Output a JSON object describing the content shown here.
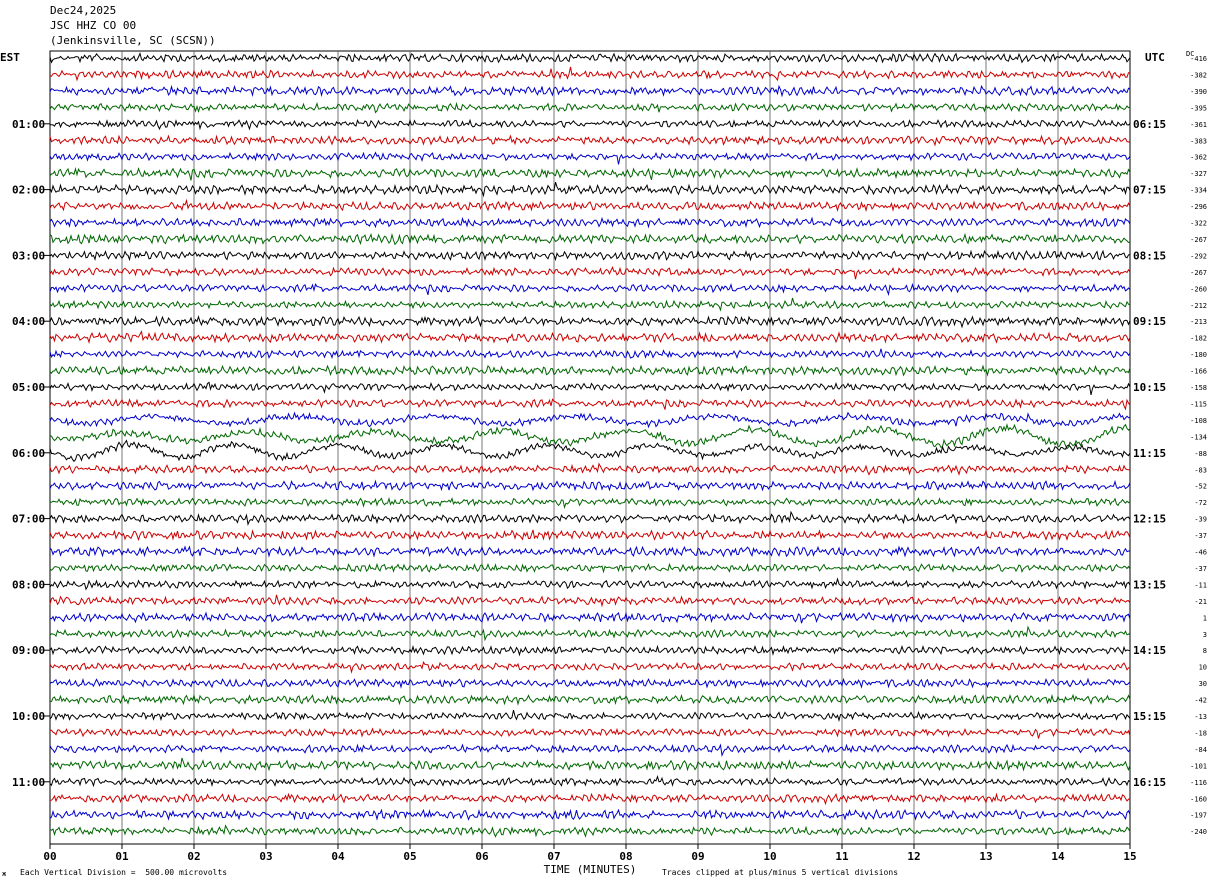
{
  "header": {
    "date": "Dec24,2025",
    "station": "JSC HHZ CO 00",
    "location": "(Jenkinsville, SC (SCSN))"
  },
  "left_tz": "EST",
  "right_tz": "UTC",
  "dc_header": "DC",
  "footer": {
    "scale_note": "Each Vertical Division =  500.00 microvolts",
    "clip_note": "Traces clipped at plus/minus 5 vertical divisions",
    "corner_mark": "ж"
  },
  "chart_data": {
    "type": "line",
    "title": "JSC HHZ CO 00",
    "xlabel": "TIME (MINUTES)",
    "ylabel": "",
    "x_ticks": [
      "00",
      "01",
      "02",
      "03",
      "04",
      "05",
      "06",
      "07",
      "08",
      "09",
      "10",
      "11",
      "12",
      "13",
      "14",
      "15"
    ],
    "xlim": [
      0,
      15
    ],
    "left_hour_labels": [
      "01:00",
      "02:00",
      "03:00",
      "04:00",
      "05:00",
      "06:00",
      "07:00",
      "08:00",
      "09:00",
      "10:00",
      "11:00"
    ],
    "right_hour_labels": [
      "06:15",
      "07:15",
      "08:15",
      "09:15",
      "10:15",
      "11:15",
      "12:15",
      "13:15",
      "14:15",
      "15:15",
      "16:15"
    ],
    "trace_colors": [
      "#000000",
      "#cc0000",
      "#0000cc",
      "#006600"
    ],
    "dc_offsets": [
      -416,
      -382,
      -390,
      -395,
      -361,
      -383,
      -362,
      -327,
      -334,
      -296,
      -322,
      -267,
      -292,
      -267,
      -260,
      -212,
      -213,
      -182,
      -180,
      -166,
      -158,
      -115,
      -108,
      -134,
      -88,
      -83,
      -52,
      -72,
      -39,
      -37,
      -46,
      -37,
      -11,
      -21,
      1,
      3,
      8,
      10,
      30,
      -42,
      -13,
      -18,
      -84,
      -101,
      -116,
      -160,
      -197,
      -240
    ],
    "grid": true,
    "event_rows": [
      22,
      23,
      24
    ]
  }
}
